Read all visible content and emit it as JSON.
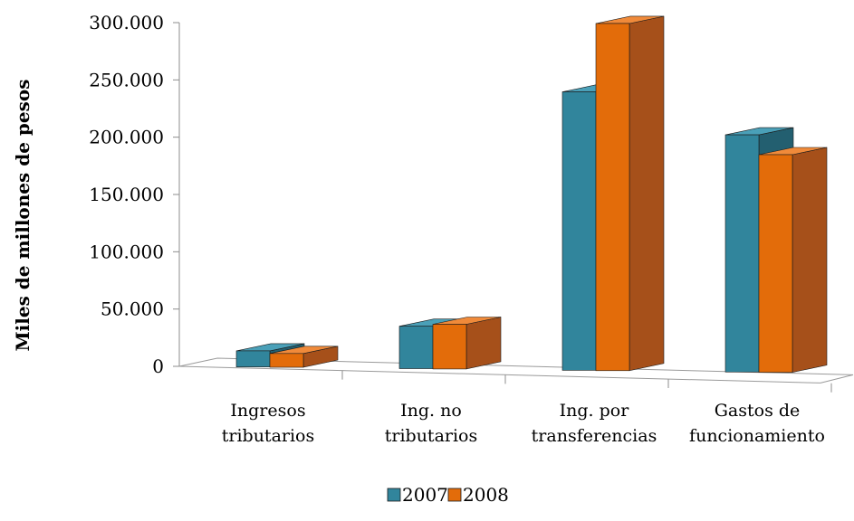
{
  "chart_data": {
    "type": "bar",
    "categories": [
      [
        "Ingresos",
        "tributarios"
      ],
      [
        "Ing. no",
        "tributarios"
      ],
      [
        "Ing. por",
        "transferencias"
      ],
      [
        "Gastos de",
        "funcionamiento"
      ]
    ],
    "series": [
      {
        "name": "2007",
        "values": [
          14000,
          37000,
          243000,
          207000
        ],
        "color": "#31859c",
        "side_color": "#235f70",
        "top_color": "#4aa0b8"
      },
      {
        "name": "2008",
        "values": [
          12000,
          39000,
          303000,
          190000
        ],
        "color": "#e36c0a",
        "side_color": "#a6501a",
        "top_color": "#f08a3a"
      }
    ],
    "ylabel": "Miles de millones de pesos",
    "xlabel": "",
    "ylim": [
      0,
      300000
    ],
    "yticks": [
      "0",
      "50.000",
      "100.000",
      "150.000",
      "200.000",
      "250.000",
      "300.000"
    ],
    "yticks_values": [
      0,
      50000,
      100000,
      150000,
      200000,
      250000,
      300000
    ],
    "grid": false,
    "legend_position": "bottom",
    "style": "3d-clustered-column"
  }
}
